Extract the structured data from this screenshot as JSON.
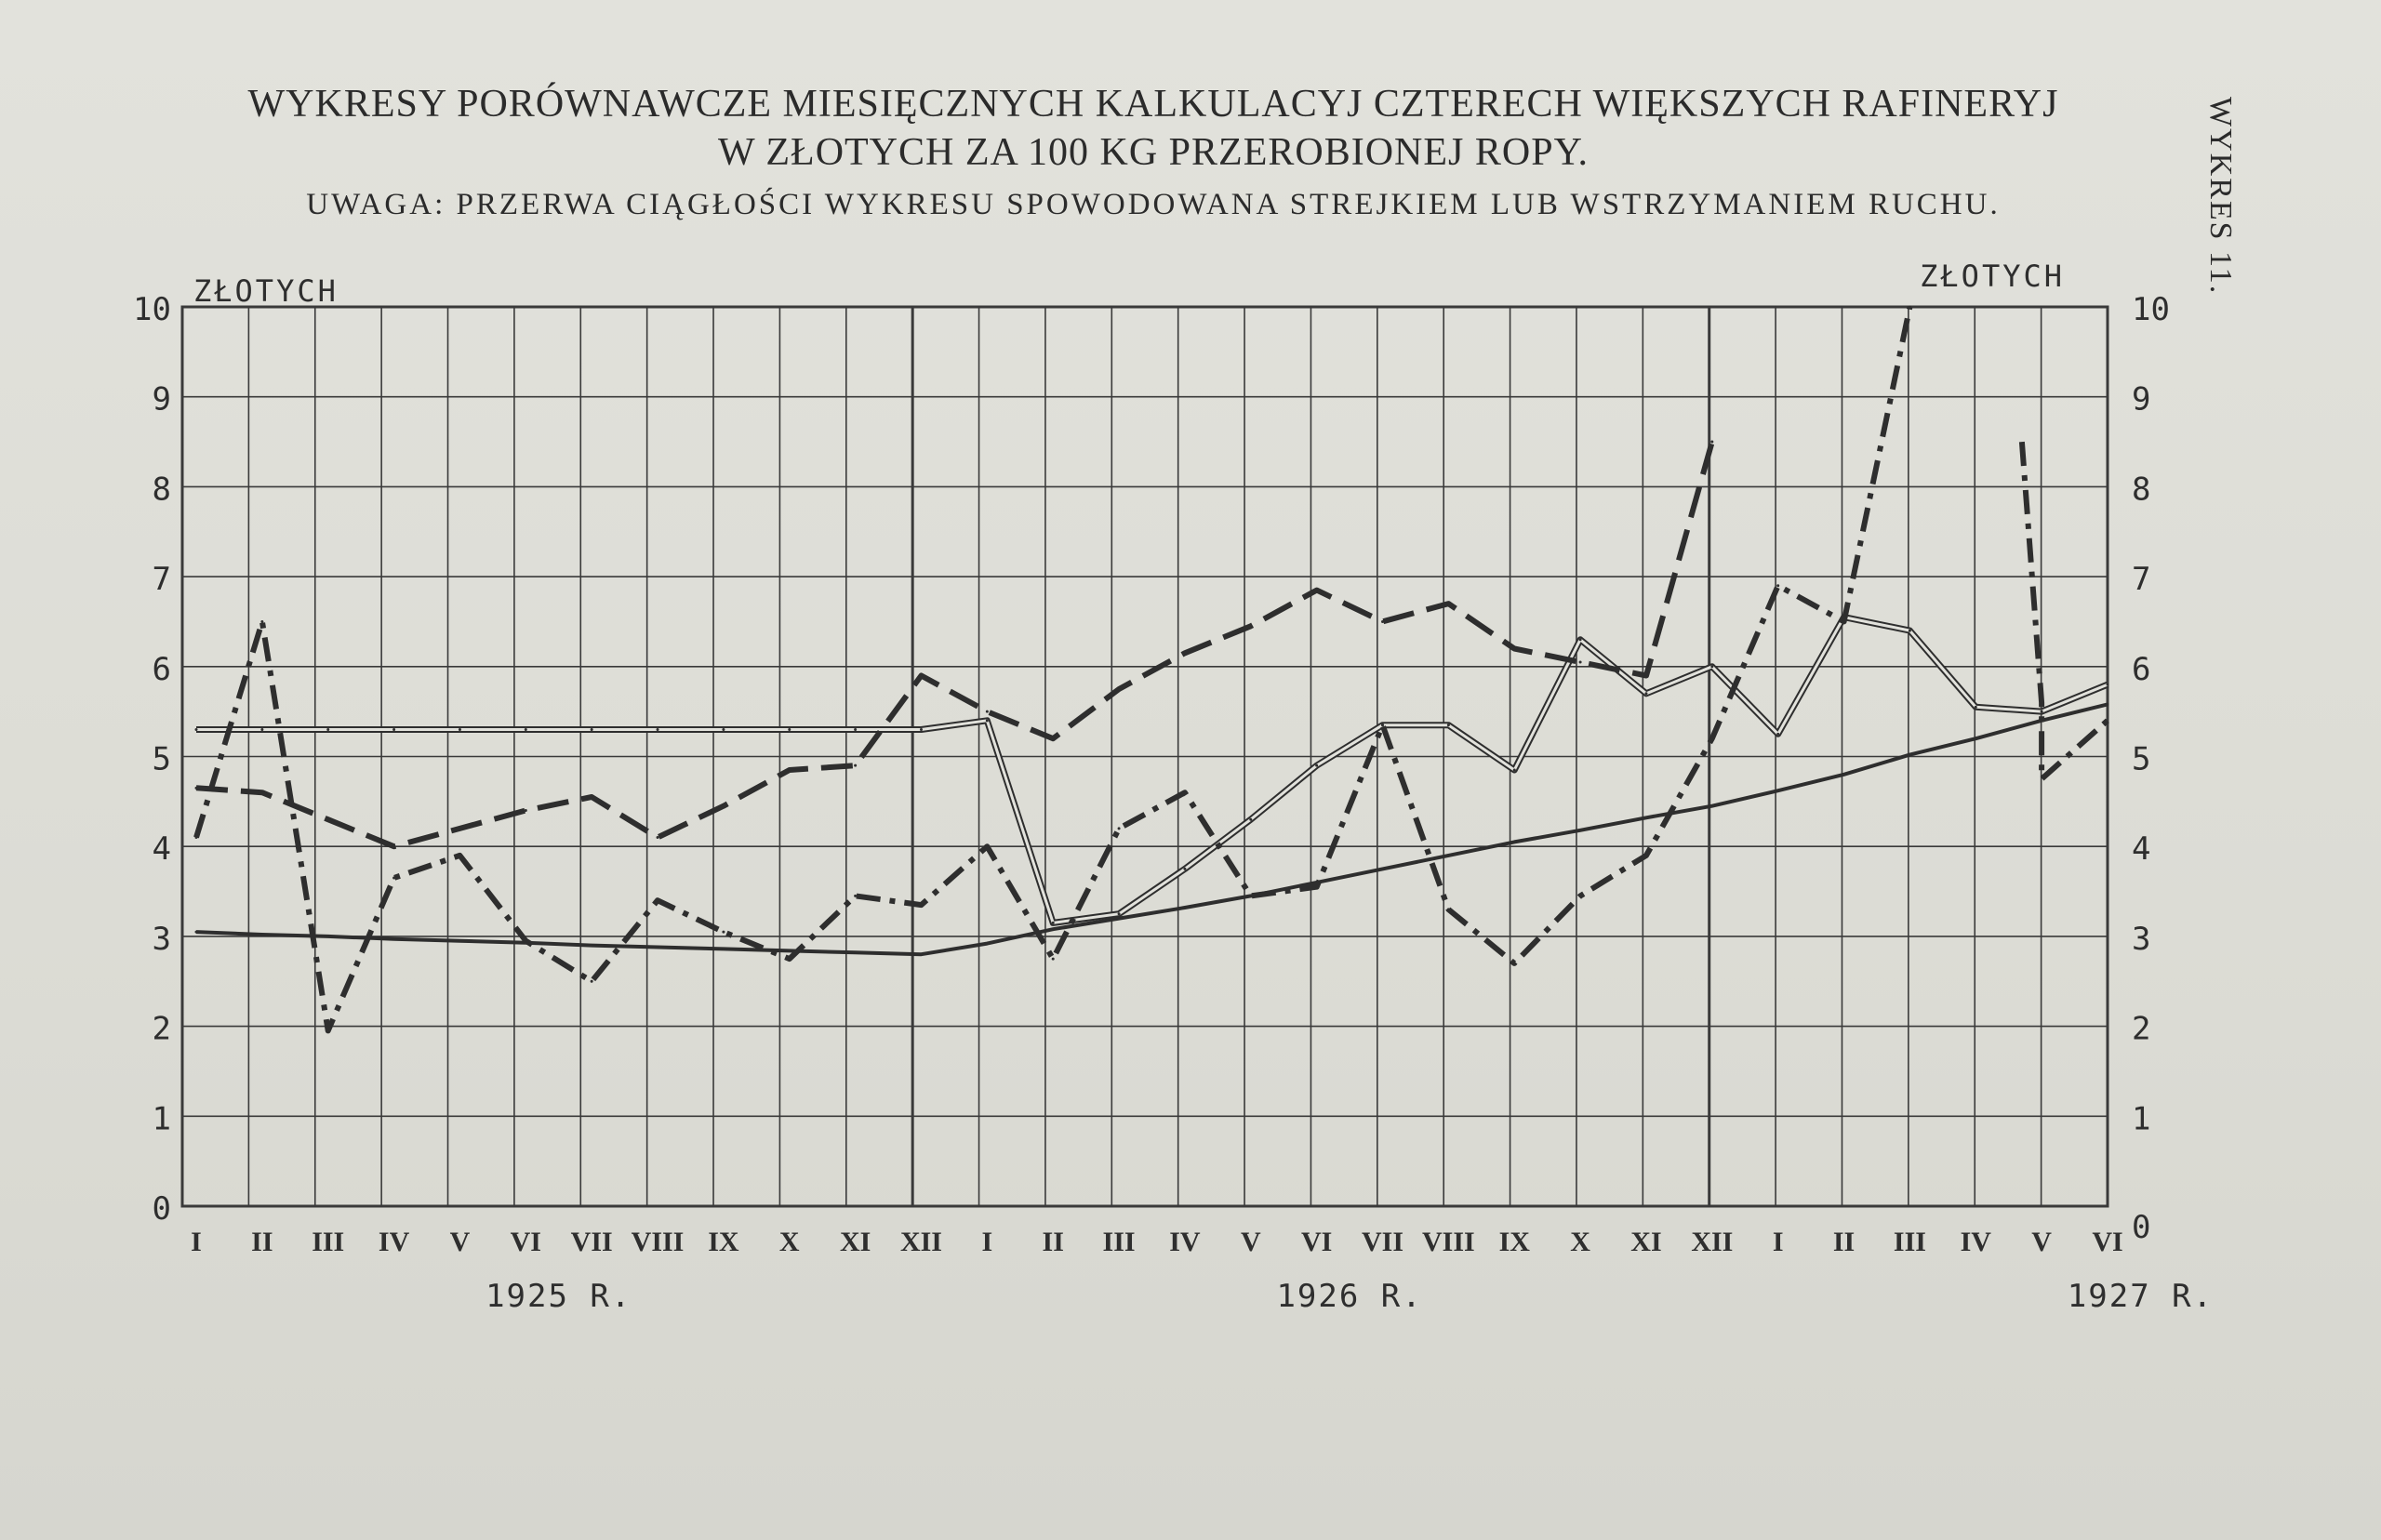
{
  "header": {
    "title_line1": "WYKRESY PORÓWNAWCZE MIESIĘCZNYCH KALKULACYJ CZTERECH WIĘKSZYCH RAFINERYJ",
    "title_line2": "W ZŁOTYCH ZA 100 KG PRZEROBIONEJ ROPY.",
    "note": "UWAGA: PRZERWA CIĄGŁOŚCI WYKRESU SPOWODOWANA STREJKIEM LUB WSTRZYMANIEM RUCHU.",
    "side_label": "WYKRES 11."
  },
  "colors": {
    "ink": "#2e2e2e",
    "grid": "#3a3a3a",
    "paper": "#dedfd8",
    "double_line_fill": "#e2e2dc"
  },
  "chart_data": {
    "type": "line",
    "ylabel_left": "ZŁOTYCH",
    "ylabel_right": "ZŁOTYCH",
    "ylim": [
      0,
      10
    ],
    "y_ticks": [
      "0",
      "1",
      "2",
      "3",
      "4",
      "5",
      "6",
      "7",
      "8",
      "9",
      "10"
    ],
    "categories": [
      "I",
      "II",
      "III",
      "IV",
      "V",
      "VI",
      "VII",
      "VIII",
      "IX",
      "X",
      "XI",
      "XII",
      "I",
      "II",
      "III",
      "IV",
      "V",
      "VI",
      "VII",
      "VIII",
      "IX",
      "X",
      "XI",
      "XII",
      "I",
      "II",
      "III",
      "IV",
      "V",
      "VI"
    ],
    "year_labels": [
      {
        "label": "1925 R.",
        "start_index": 0
      },
      {
        "label": "1926 R.",
        "start_index": 12
      },
      {
        "label": "1927 R.",
        "start_index": 24
      }
    ],
    "grid": true,
    "series": [
      {
        "style": "solid",
        "values": [
          3.05,
          3.02,
          3.0,
          2.97,
          2.95,
          2.93,
          2.9,
          2.88,
          2.86,
          2.84,
          2.82,
          2.8,
          2.92,
          3.08,
          3.2,
          3.32,
          3.45,
          3.6,
          3.75,
          3.9,
          4.05,
          4.18,
          4.32,
          4.45,
          4.62,
          4.8,
          5.02,
          5.2,
          5.4,
          5.58
        ]
      },
      {
        "style": "double",
        "values": [
          5.3,
          5.3,
          5.3,
          5.3,
          5.3,
          5.3,
          5.3,
          5.3,
          5.3,
          5.3,
          5.3,
          5.3,
          5.4,
          3.15,
          3.25,
          3.75,
          4.3,
          4.9,
          5.35,
          5.35,
          4.85,
          6.3,
          5.7,
          6.0,
          5.25,
          6.55,
          6.4,
          5.55,
          5.5,
          5.8
        ]
      },
      {
        "style": "long-dash",
        "values": [
          4.65,
          4.6,
          4.3,
          4.0,
          4.2,
          4.4,
          4.55,
          4.1,
          4.45,
          4.85,
          4.9,
          5.9,
          5.5,
          5.2,
          5.75,
          6.15,
          6.45,
          6.85,
          6.5,
          6.7,
          6.2,
          6.05,
          5.9,
          8.5,
          null,
          null,
          null,
          null,
          null,
          null
        ]
      },
      {
        "style": "dash-dot",
        "values": [
          4.1,
          6.5,
          1.95,
          3.65,
          3.9,
          2.95,
          2.5,
          3.4,
          3.05,
          2.75,
          3.45,
          3.35,
          4.0,
          2.75,
          4.2,
          4.6,
          3.45,
          3.55,
          5.35,
          3.3,
          2.7,
          3.45,
          3.9,
          5.2,
          6.9,
          6.5,
          10.0,
          null,
          null,
          null
        ],
        "segment2": [
          {
            "x": 27.7,
            "y": 8.5
          },
          {
            "x": 28.0,
            "y": 5.6
          },
          {
            "x": 28.0,
            "y": 4.75
          },
          {
            "x": 29,
            "y": 5.4
          }
        ]
      }
    ]
  }
}
